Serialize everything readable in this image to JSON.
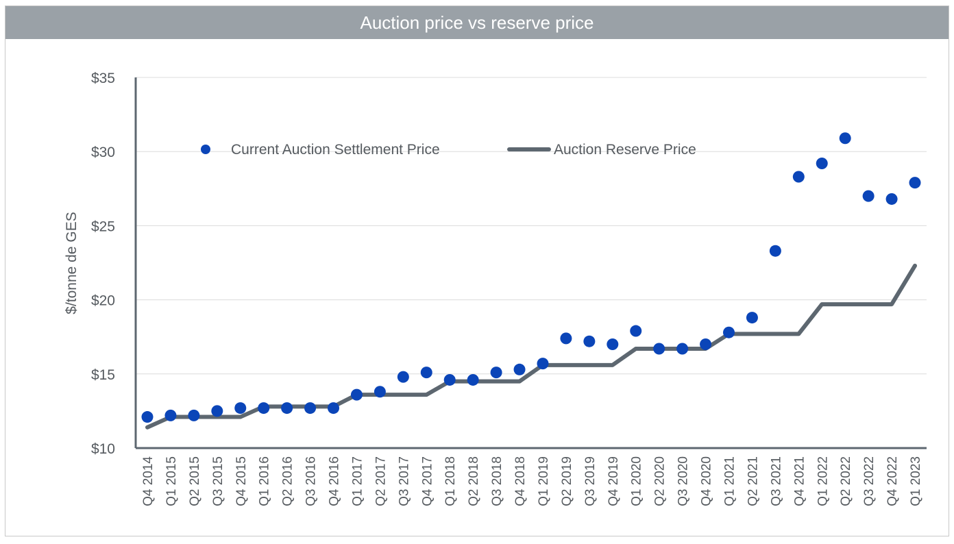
{
  "colors": {
    "header": "#9aa1a7",
    "settlement": "#0b45b8",
    "reserve": "#5d6770",
    "grid": "#dcdcdc",
    "axis": "#5d6770",
    "text": "#555a5f"
  },
  "chart_data": {
    "type": "line",
    "title": "Auction price vs reserve price",
    "ylabel": "$/tonne de GES",
    "xlabel": "",
    "ylim": [
      10,
      35
    ],
    "yticks": [
      10,
      15,
      20,
      25,
      30,
      35
    ],
    "ytick_labels": [
      "$10",
      "$15",
      "$20",
      "$25",
      "$30",
      "$35"
    ],
    "grid": true,
    "legend_position": "top-left",
    "categories": [
      "Q4 2014",
      "Q1 2015",
      "Q2 2015",
      "Q3 2015",
      "Q4 2015",
      "Q1 2016",
      "Q2 2016",
      "Q3 2016",
      "Q4 2016",
      "Q1 2017",
      "Q2 2017",
      "Q3 2017",
      "Q4 2017",
      "Q1 2018",
      "Q2 2018",
      "Q3 2018",
      "Q4 2018",
      "Q1 2019",
      "Q2 2019",
      "Q3 2019",
      "Q4 2019",
      "Q1 2020",
      "Q2 2020",
      "Q3 2020",
      "Q4 2020",
      "Q1 2021",
      "Q2 2021",
      "Q3 2021",
      "Q4 2021",
      "Q1 2022",
      "Q2 2022",
      "Q3 2022",
      "Q4 2022",
      "Q1 2023"
    ],
    "series": [
      {
        "name": "Current Auction Settlement Price",
        "style": "scatter",
        "values": [
          12.1,
          12.2,
          12.2,
          12.5,
          12.7,
          12.7,
          12.7,
          12.7,
          12.7,
          13.6,
          13.8,
          14.8,
          15.1,
          14.6,
          14.6,
          15.1,
          15.3,
          15.7,
          17.4,
          17.2,
          17.0,
          17.9,
          16.7,
          16.7,
          17.0,
          17.8,
          18.8,
          23.3,
          28.3,
          29.2,
          30.9,
          27.0,
          26.8,
          27.9
        ]
      },
      {
        "name": "Auction Reserve Price",
        "style": "line",
        "values": [
          11.4,
          12.1,
          12.1,
          12.1,
          12.1,
          12.8,
          12.8,
          12.8,
          12.8,
          13.6,
          13.6,
          13.6,
          13.6,
          14.5,
          14.5,
          14.5,
          14.5,
          15.6,
          15.6,
          15.6,
          15.6,
          16.7,
          16.7,
          16.7,
          16.7,
          17.7,
          17.7,
          17.7,
          17.7,
          19.7,
          19.7,
          19.7,
          19.7,
          22.3
        ]
      }
    ]
  }
}
